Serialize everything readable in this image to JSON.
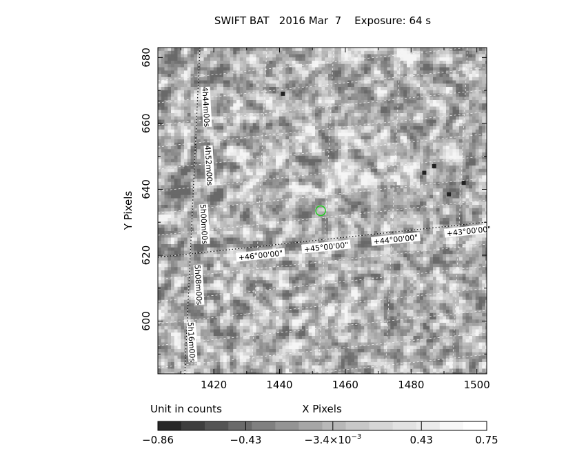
{
  "chart_data": {
    "type": "heatmap",
    "title": "SWIFT BAT   2016 Mar  7    Exposure: 64 s",
    "xlabel": "X Pixels",
    "ylabel": "Y Pixels",
    "xlim": [
      1403,
      1503
    ],
    "ylim": [
      584,
      683
    ],
    "x_ticks": [
      1420,
      1440,
      1460,
      1480,
      1500
    ],
    "y_ticks": [
      600,
      620,
      640,
      660,
      680
    ],
    "grid": true,
    "colormap": "grayscale",
    "colorbar": {
      "unit_label": "Unit in counts",
      "tick_labels": [
        "−0.86",
        "−0.43",
        "−3.4×10",
        "0.43",
        "0.75"
      ],
      "tick_superscript": "−3",
      "range": [
        -0.86,
        0.75
      ]
    },
    "ra_labels": [
      "4h44m00s",
      "4h52m00s",
      "5h00m00s",
      "5h08m00s",
      "5h16m00s"
    ],
    "dec_labels": [
      "+46°00'00\"",
      "+45°00'00\"",
      "+44°00'00\"",
      "+43°00'00\""
    ],
    "source_marker": {
      "x": 1452.5,
      "y": 633.5,
      "color": "#22cc22"
    }
  }
}
